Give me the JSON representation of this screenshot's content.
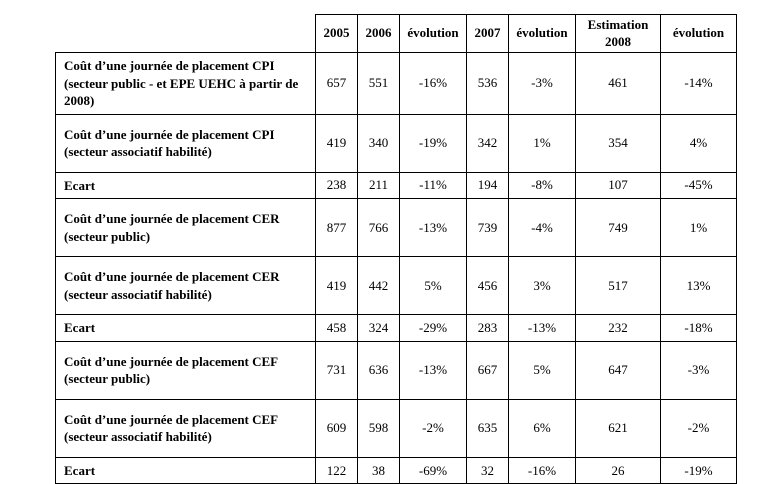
{
  "table": {
    "columns": [
      "2005",
      "2006",
      "évolution",
      "2007",
      "évolution",
      "Estimation 2008",
      "évolution"
    ],
    "rows": [
      {
        "label": "Coût d’une journée de placement CPI (secteur public - et EPE UEHC à partir de 2008)",
        "values": [
          "657",
          "551",
          "-16%",
          "536",
          "-3%",
          "461",
          "-14%"
        ]
      },
      {
        "label": "Coût d’une journée de placement CPI (secteur associatif habilité)",
        "values": [
          "419",
          "340",
          "-19%",
          "342",
          "1%",
          "354",
          "4%"
        ]
      },
      {
        "label": "Ecart",
        "values": [
          "238",
          "211",
          "-11%",
          "194",
          "-8%",
          "107",
          "-45%"
        ]
      },
      {
        "label": "Coût d’une journée de placement CER (secteur public)",
        "values": [
          "877",
          "766",
          "-13%",
          "739",
          "-4%",
          "749",
          "1%"
        ]
      },
      {
        "label": "Coût d’une journée de placement CER (secteur associatif habilité)",
        "values": [
          "419",
          "442",
          "5%",
          "456",
          "3%",
          "517",
          "13%"
        ]
      },
      {
        "label": "Ecart",
        "values": [
          "458",
          "324",
          "-29%",
          "283",
          "-13%",
          "232",
          "-18%"
        ]
      },
      {
        "label": "Coût d’une journée de placement CEF (secteur public)",
        "values": [
          "731",
          "636",
          "-13%",
          "667",
          "5%",
          "647",
          "-3%"
        ]
      },
      {
        "label": "Coût d’une journée de placement CEF (secteur associatif habilité)",
        "values": [
          "609",
          "598",
          "-2%",
          "635",
          "6%",
          "621",
          "-2%"
        ]
      },
      {
        "label": "Ecart",
        "values": [
          "122",
          "38",
          "-69%",
          "32",
          "-16%",
          "26",
          "-19%"
        ]
      }
    ]
  }
}
